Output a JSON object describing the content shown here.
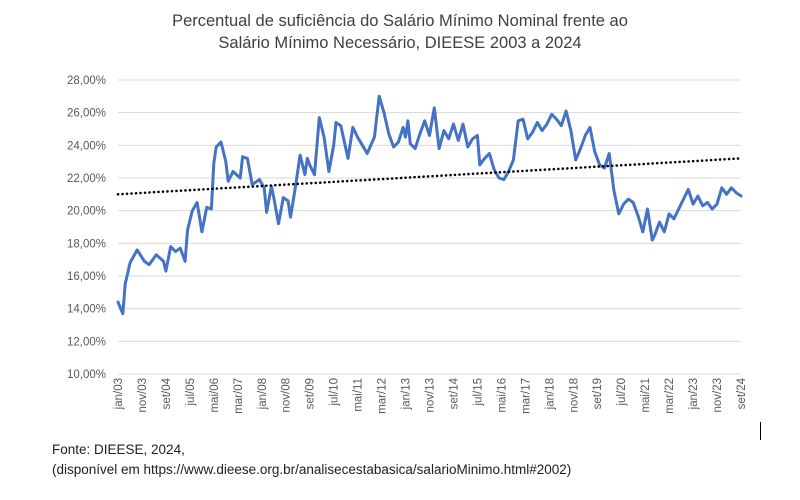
{
  "chart_data": {
    "type": "line",
    "title": "Percentual de suficiência do Salário Mínimo Nominal frente ao Salário Mínimo Necessário, DIEESE 2003 a 2024",
    "title_lines": [
      "Percentual de suficiência do Salário Mínimo Nominal frente ao",
      "Salário Mínimo Necessário, DIEESE 2003 a 2024"
    ],
    "xlabel": "",
    "ylabel": "",
    "ylim": [
      10,
      28
    ],
    "yticks": [
      "10,00%",
      "12,00%",
      "14,00%",
      "16,00%",
      "18,00%",
      "20,00%",
      "22,00%",
      "24,00%",
      "26,00%",
      "28,00%"
    ],
    "xticks": [
      "jan/03",
      "nov/03",
      "set/04",
      "jul/05",
      "mai/06",
      "mar/07",
      "jan/08",
      "nov/08",
      "set/09",
      "jul/10",
      "mai/11",
      "mar/12",
      "jan/13",
      "nov/13",
      "set/14",
      "jul/15",
      "mai/16",
      "mar/17",
      "jan/18",
      "nov/18",
      "set/19",
      "jul/20",
      "mai/21",
      "mar/22",
      "jan/23",
      "nov/23",
      "set/24"
    ],
    "x_start": "jan/03",
    "x_end": "set/24",
    "grid": "horizontal",
    "series": [
      {
        "style": "solid",
        "color": "#4472C4",
        "points": [
          [
            "jan/03",
            14.4
          ],
          [
            "mar/03",
            13.7
          ],
          [
            "abr/03",
            15.5
          ],
          [
            "jun/03",
            16.8
          ],
          [
            "set/03",
            17.6
          ],
          [
            "dez/03",
            16.9
          ],
          [
            "fev/04",
            16.7
          ],
          [
            "mai/04",
            17.3
          ],
          [
            "ago/04",
            16.9
          ],
          [
            "set/04",
            16.3
          ],
          [
            "nov/04",
            17.8
          ],
          [
            "jan/05",
            17.5
          ],
          [
            "mar/05",
            17.7
          ],
          [
            "mai/05",
            16.9
          ],
          [
            "jun/05",
            18.8
          ],
          [
            "ago/05",
            20.0
          ],
          [
            "out/05",
            20.5
          ],
          [
            "dez/05",
            18.7
          ],
          [
            "fev/06",
            20.2
          ],
          [
            "abr/06",
            20.1
          ],
          [
            "mai/06",
            22.9
          ],
          [
            "jun/06",
            23.9
          ],
          [
            "ago/06",
            24.2
          ],
          [
            "out/06",
            23.0
          ],
          [
            "nov/06",
            21.8
          ],
          [
            "jan/07",
            22.4
          ],
          [
            "abr/07",
            22.0
          ],
          [
            "mai/07",
            23.3
          ],
          [
            "jul/07",
            23.2
          ],
          [
            "set/07",
            21.6
          ],
          [
            "dez/07",
            21.9
          ],
          [
            "fev/08",
            21.4
          ],
          [
            "mar/08",
            19.9
          ],
          [
            "mai/08",
            21.5
          ],
          [
            "jun/08",
            20.8
          ],
          [
            "ago/08",
            19.2
          ],
          [
            "out/08",
            20.8
          ],
          [
            "dez/08",
            20.6
          ],
          [
            "jan/09",
            19.6
          ],
          [
            "mar/09",
            21.4
          ],
          [
            "mai/09",
            23.4
          ],
          [
            "jul/09",
            22.2
          ],
          [
            "ago/09",
            23.2
          ],
          [
            "set/09",
            22.8
          ],
          [
            "nov/09",
            22.2
          ],
          [
            "jan/10",
            25.7
          ],
          [
            "mar/10",
            24.5
          ],
          [
            "mai/10",
            22.4
          ],
          [
            "jul/10",
            24.0
          ],
          [
            "ago/10",
            25.4
          ],
          [
            "out/10",
            25.2
          ],
          [
            "jan/11",
            23.2
          ],
          [
            "mar/11",
            25.1
          ],
          [
            "mai/11",
            24.5
          ],
          [
            "jul/11",
            24.0
          ],
          [
            "set/11",
            23.5
          ],
          [
            "dez/11",
            24.5
          ],
          [
            "fev/12",
            27.0
          ],
          [
            "abr/12",
            26.0
          ],
          [
            "jun/12",
            24.7
          ],
          [
            "ago/12",
            23.9
          ],
          [
            "out/12",
            24.2
          ],
          [
            "dez/12",
            25.1
          ],
          [
            "jan/13",
            24.5
          ],
          [
            "fev/13",
            25.5
          ],
          [
            "mar/13",
            24.1
          ],
          [
            "mai/13",
            23.8
          ],
          [
            "jul/13",
            24.7
          ],
          [
            "set/13",
            25.5
          ],
          [
            "nov/13",
            24.6
          ],
          [
            "jan/14",
            26.3
          ],
          [
            "mar/14",
            23.8
          ],
          [
            "mai/14",
            24.9
          ],
          [
            "jul/14",
            24.4
          ],
          [
            "set/14",
            25.3
          ],
          [
            "nov/14",
            24.3
          ],
          [
            "jan/15",
            25.3
          ],
          [
            "mar/15",
            23.9
          ],
          [
            "mai/15",
            24.4
          ],
          [
            "jul/15",
            24.6
          ],
          [
            "ago/15",
            22.8
          ],
          [
            "out/15",
            23.2
          ],
          [
            "dez/15",
            23.5
          ],
          [
            "fev/16",
            22.5
          ],
          [
            "abr/16",
            22.0
          ],
          [
            "jun/16",
            21.9
          ],
          [
            "ago/16",
            22.4
          ],
          [
            "out/16",
            23.1
          ],
          [
            "dez/16",
            25.5
          ],
          [
            "fev/17",
            25.6
          ],
          [
            "abr/17",
            24.4
          ],
          [
            "jun/17",
            24.8
          ],
          [
            "ago/17",
            25.4
          ],
          [
            "out/17",
            24.9
          ],
          [
            "dez/17",
            25.3
          ],
          [
            "fev/18",
            25.9
          ],
          [
            "abr/18",
            25.6
          ],
          [
            "jun/18",
            25.2
          ],
          [
            "ago/18",
            26.1
          ],
          [
            "out/18",
            24.9
          ],
          [
            "dez/18",
            23.1
          ],
          [
            "fev/19",
            23.8
          ],
          [
            "abr/19",
            24.6
          ],
          [
            "jun/19",
            25.1
          ],
          [
            "ago/19",
            23.6
          ],
          [
            "out/19",
            22.8
          ],
          [
            "dez/19",
            22.6
          ],
          [
            "fev/20",
            23.5
          ],
          [
            "abr/20",
            21.2
          ],
          [
            "jun/20",
            19.8
          ],
          [
            "ago/20",
            20.4
          ],
          [
            "out/20",
            20.7
          ],
          [
            "dez/20",
            20.5
          ],
          [
            "fev/21",
            19.7
          ],
          [
            "abr/21",
            18.7
          ],
          [
            "jun/21",
            20.1
          ],
          [
            "ago/21",
            18.2
          ],
          [
            "set/21",
            18.5
          ],
          [
            "nov/21",
            19.3
          ],
          [
            "jan/22",
            18.7
          ],
          [
            "mar/22",
            19.8
          ],
          [
            "mai/22",
            19.5
          ],
          [
            "jul/22",
            20.1
          ],
          [
            "set/22",
            20.7
          ],
          [
            "nov/22",
            21.3
          ],
          [
            "jan/23",
            20.4
          ],
          [
            "mar/23",
            20.9
          ],
          [
            "mai/23",
            20.3
          ],
          [
            "jul/23",
            20.5
          ],
          [
            "set/23",
            20.1
          ],
          [
            "nov/23",
            20.4
          ],
          [
            "jan/24",
            21.4
          ],
          [
            "mar/24",
            21.0
          ],
          [
            "mai/24",
            21.4
          ],
          [
            "jul/24",
            21.1
          ],
          [
            "set/24",
            20.9
          ]
        ]
      },
      {
        "style": "dotted",
        "color": "#000000",
        "trend": "linear",
        "points": [
          [
            "jan/03",
            21.0
          ],
          [
            "set/24",
            23.2
          ]
        ]
      }
    ]
  },
  "source": {
    "line1": "Fonte: DIEESE, 2024,",
    "line2": "(disponível em https://www.dieese.org.br/analisecestabasica/salarioMinimo.html#2002)"
  }
}
